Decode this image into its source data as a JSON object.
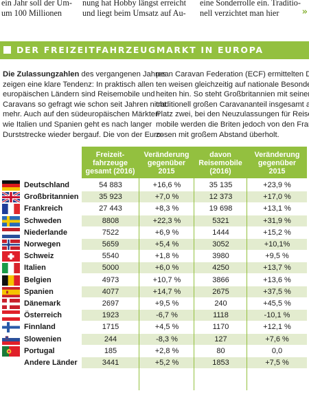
{
  "top_columns": [
    [
      "ein Jahr soll der Um-",
      "um 100 Millionen"
    ],
    [
      "nung hat Hobby längst erreicht",
      "und liegt beim Umsatz auf Au-"
    ],
    [
      "eine Sonderrolle ein. Traditio-",
      "nell verzichtet man hier"
    ]
  ],
  "continue_glyph": "»",
  "banner_title": "DER FREIZEITFAHRZEUGMARKT IN EUROPA",
  "intro": {
    "left_bold": "Die Zulassungzahlen",
    "left_first_rest": " des vergangenen Jahres",
    "left_lines": [
      "zeigen eine klare Tendenz: In praktisch allen",
      "europäischen Ländern sind Reisemobile und",
      "Caravans so gefragt wie schon seit Jahren nicht",
      "mehr. Auch auf den südeuropäischen Märkten",
      "wie Italien und Spanien geht es nach langer",
      "Durststrecke wieder bergauf. Die von der Euro-"
    ],
    "right_lines": [
      "pean Caravan Federation (ECF) ermittelten Da-",
      "ten weisen gleichzeitig auf nationale Besonder-",
      "heiten hin. So steht Großbritannien mit seinem",
      "traditionell großen Caravananteil insgesamt auf",
      "Platz zwei, bei den Neuzulassungen für Reise-",
      "mobile werden die Briten jedoch von den Fran-",
      "zosen mit großem Abstand überholt."
    ]
  },
  "table": {
    "headers": [
      [
        "Freizeit-",
        "fahrzeuge",
        "gesamt (2016)"
      ],
      [
        "Veränderung",
        "gegenüber",
        "2015"
      ],
      [
        "davon",
        "Reisemobile",
        "(2016)"
      ],
      [
        "Veränderung",
        "gegenüber",
        "2015"
      ]
    ],
    "rows": [
      {
        "flag": "flag-germany",
        "country": "Deutschland",
        "total": "54 883",
        "total_change": "+16,6 %",
        "motorhomes": "35 135",
        "motorhomes_change": "+23,9 %"
      },
      {
        "flag": "flag-uk",
        "country": "Großbritannien",
        "total": "35 923",
        "total_change": "+7,0 %",
        "motorhomes": "12 373",
        "motorhomes_change": "+17,0 %"
      },
      {
        "flag": "flag-france",
        "country": "Frankreich",
        "total": "27 443",
        "total_change": "+8,3 %",
        "motorhomes": "19 698",
        "motorhomes_change": "+13,1 %"
      },
      {
        "flag": "flag-sweden",
        "country": "Schweden",
        "total": "8808",
        "total_change": "+22,3 %",
        "motorhomes": "5321",
        "motorhomes_change": "+31,9 %"
      },
      {
        "flag": "flag-netherlands",
        "country": "Niederlande",
        "total": "7522",
        "total_change": "+6,9 %",
        "motorhomes": "1444",
        "motorhomes_change": "+15,2 %"
      },
      {
        "flag": "flag-norway",
        "country": "Norwegen",
        "total": "5659",
        "total_change": "+5,4 %",
        "motorhomes": "3052",
        "motorhomes_change": "+10,1%"
      },
      {
        "flag": "flag-switzerland",
        "country": "Schweiz",
        "total": "5540",
        "total_change": "+1,8 %",
        "motorhomes": "3980",
        "motorhomes_change": "+9,5 %"
      },
      {
        "flag": "flag-italy",
        "country": "Italien",
        "total": "5000",
        "total_change": "+6,0 %",
        "motorhomes": "4250",
        "motorhomes_change": "+13,7 %"
      },
      {
        "flag": "flag-belgium",
        "country": "Belgien",
        "total": "4973",
        "total_change": "+10,7 %",
        "motorhomes": "3866",
        "motorhomes_change": "+13,6 %"
      },
      {
        "flag": "flag-spain",
        "country": "Spanien",
        "total": "4077",
        "total_change": "+14,7 %",
        "motorhomes": "2675",
        "motorhomes_change": "+37,5 %"
      },
      {
        "flag": "flag-denmark",
        "country": "Dänemark",
        "total": "2697",
        "total_change": "+9,5 %",
        "motorhomes": "240",
        "motorhomes_change": "+45,5 %"
      },
      {
        "flag": "flag-austria",
        "country": "Österreich",
        "total": "1923",
        "total_change": "-6,7 %",
        "motorhomes": "1118",
        "motorhomes_change": "-10,1 %"
      },
      {
        "flag": "flag-finland",
        "country": "Finnland",
        "total": "1715",
        "total_change": "+4,5 %",
        "motorhomes": "1170",
        "motorhomes_change": "+12,1 %"
      },
      {
        "flag": "flag-slovenia",
        "country": "Slowenien",
        "total": "244",
        "total_change": "-8,3 %",
        "motorhomes": "127",
        "motorhomes_change": "+7,6 %"
      },
      {
        "flag": "flag-portugal",
        "country": "Portugal",
        "total": "185",
        "total_change": "+2,8 %",
        "motorhomes": "80",
        "motorhomes_change": "0,0"
      },
      {
        "flag": "",
        "country": "Andere Länder",
        "total": "3441",
        "total_change": "+5,2 %",
        "motorhomes": "1853",
        "motorhomes_change": "+7,5 %"
      }
    ]
  },
  "colors": {
    "accent": "#93c03f",
    "row_tint": "#e3eccf"
  }
}
